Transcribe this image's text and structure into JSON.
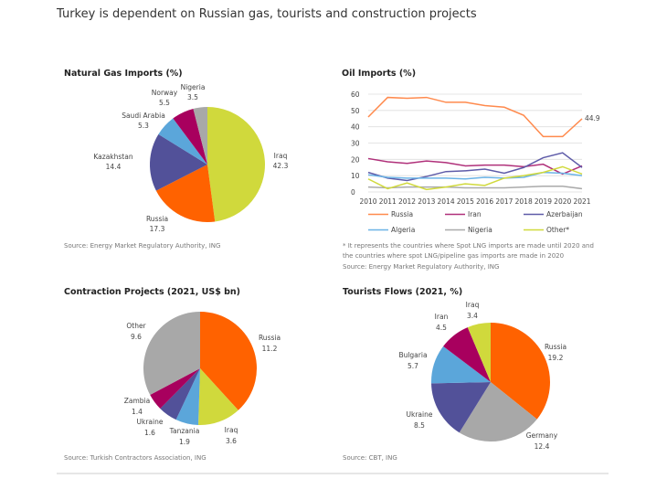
{
  "page": {
    "title": "Turkey is dependent on Russian gas, tourists and construction projects"
  },
  "chart_data": [
    {
      "type": "pie",
      "title": "Natural Gas Imports (%)",
      "labels": [
        "Iraq",
        "Russia",
        "Kazakhstan",
        "Saudi Arabia",
        "Norway",
        "Nigeria"
      ],
      "values": [
        42.3,
        17.3,
        14.4,
        5.3,
        5.5,
        3.5
      ],
      "colors": [
        "#D0D93C",
        "#FF6200",
        "#525199",
        "#5BA6DA",
        "#A8005E",
        "#A8A8A8"
      ],
      "source": "Source: Energy Market Regulatory Authority, ING"
    },
    {
      "type": "line",
      "title": "Oil Imports (%)",
      "x": [
        2010,
        2011,
        2012,
        2013,
        2014,
        2015,
        2016,
        2017,
        2018,
        2019,
        2020,
        2021
      ],
      "ylim": [
        0,
        60
      ],
      "yticks": [
        0,
        10,
        20,
        30,
        40,
        50,
        60
      ],
      "grid": true,
      "legend_placement": "bottom",
      "annotation": "44.9",
      "series": [
        {
          "name": "Russia",
          "color": "#FF8A4D",
          "values": [
            46,
            58,
            57.5,
            58,
            55,
            55,
            53,
            52,
            47,
            34,
            34,
            44.9
          ]
        },
        {
          "name": "Iran",
          "color": "#B0307A",
          "values": [
            20.5,
            18.5,
            17.5,
            19,
            18,
            16,
            16.5,
            16.5,
            15.5,
            17,
            11,
            16
          ]
        },
        {
          "name": "Azerbaijan",
          "color": "#5E5BA8",
          "values": [
            12,
            8.5,
            7,
            9.5,
            12.5,
            13,
            14,
            11.5,
            15,
            21,
            24,
            15
          ]
        },
        {
          "name": "Algeria",
          "color": "#6BB3E6",
          "values": [
            10.5,
            9,
            8.5,
            8.5,
            8.5,
            8,
            9,
            8.5,
            9,
            12,
            11.5,
            10
          ]
        },
        {
          "name": "Nigeria",
          "color": "#AAAAAA",
          "values": [
            3,
            2.5,
            3,
            3,
            3,
            2.5,
            2.5,
            2.5,
            3,
            3.5,
            3.5,
            2
          ]
        },
        {
          "name": "Other*",
          "color": "#D0D93C",
          "values": [
            8,
            2,
            5.5,
            1.5,
            3,
            5,
            4,
            8.5,
            10,
            12,
            15.5,
            11
          ]
        }
      ],
      "footnote": [
        "* It represents the countries where Spot LNG imports are made until 2020 and",
        "the countries where spot LNG/pipeline gas imports are made in 2020"
      ],
      "source": "Source: Energy Market Regulatory Authority, ING"
    },
    {
      "type": "pie",
      "title": "Contraction Projects (2021, US$ bn)",
      "labels": [
        "Russia",
        "Iraq",
        "Tanzania",
        "Ukraine",
        "Zambia",
        "Other"
      ],
      "values": [
        11.2,
        3.6,
        1.9,
        1.6,
        1.4,
        9.6
      ],
      "colors": [
        "#FF6200",
        "#D0D93C",
        "#5BA6DA",
        "#525199",
        "#A8005E",
        "#A8A8A8"
      ],
      "source": "Source: Turkish Contractors Association, ING"
    },
    {
      "type": "pie",
      "title": "Tourists Flows (2021, %)",
      "labels": [
        "Russia",
        "Germany",
        "Ukraine",
        "Bulgaria",
        "Iran",
        "Iraq"
      ],
      "values": [
        19.2,
        12.4,
        8.5,
        5.7,
        4.5,
        3.4
      ],
      "colors": [
        "#FF6200",
        "#A8A8A8",
        "#525199",
        "#5BA6DA",
        "#A8005E",
        "#D0D93C"
      ],
      "source": "Source: CBT, ING"
    }
  ]
}
